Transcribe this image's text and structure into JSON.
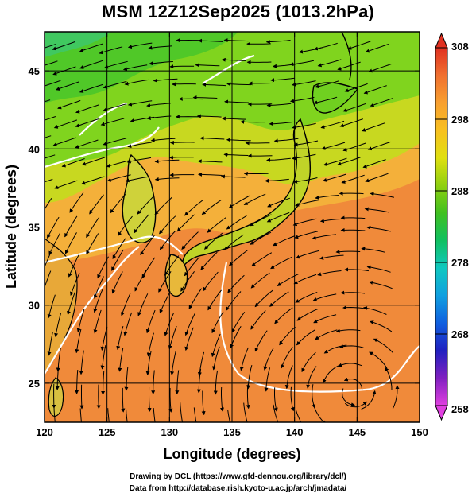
{
  "title": "MSM 12Z12Sep2025 (1013.2hPa)",
  "map": {
    "x_axis": {
      "label": "Longitude (degrees)",
      "range": [
        120,
        150
      ],
      "ticks": [
        120,
        125,
        130,
        135,
        140,
        145,
        150
      ],
      "tick_labels": [
        "120",
        "125",
        "130",
        "135",
        "140",
        "145",
        "150"
      ]
    },
    "y_axis": {
      "label": "Latitude  (degrees)",
      "range": [
        22.5,
        47.5
      ],
      "ticks": [
        25,
        30,
        35,
        40,
        45
      ],
      "tick_labels": [
        "25",
        "30",
        "35",
        "40",
        "45"
      ]
    },
    "grid": true,
    "field": "temperature shading with wind streamlines",
    "colorbar": {
      "range": [
        258,
        308
      ],
      "ticks": [
        258,
        268,
        278,
        288,
        298,
        308
      ],
      "tick_labels": [
        "258",
        "268",
        "278",
        "288",
        "298",
        "308"
      ],
      "colors": [
        "#e040e0",
        "#8020c0",
        "#2020c0",
        "#1060e0",
        "#10a0e0",
        "#10c8c0",
        "#10c060",
        "#40c020",
        "#90d010",
        "#e0e010",
        "#f8c020",
        "#f8a030",
        "#f07030",
        "#e03020"
      ]
    },
    "colors": {
      "warm_ocean": "#f08a3a",
      "mid_ocean": "#f4b03a",
      "cool_land": "#70d020",
      "coast": "#000000",
      "streamline": "#000000",
      "isotherm": "#ffffff"
    }
  },
  "credits": {
    "line1": "Drawing by DCL (https://www.gfd-dennou.org/library/dcl/)",
    "line2": "Data from http://database.rish.kyoto-u.ac.jp/arch/jmadata/"
  }
}
